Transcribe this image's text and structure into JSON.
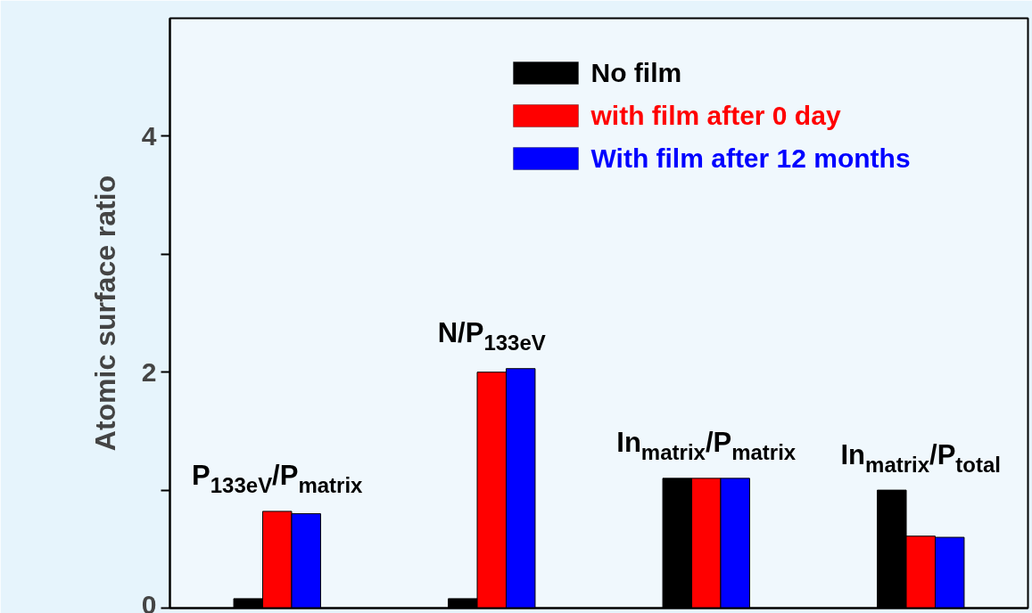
{
  "chart_data": {
    "type": "bar",
    "ylabel": "Atomic surface ratio",
    "categories": [
      "P$_{133eV}$/P$_{matrix}$",
      "N/P$_{133eV}$",
      "In$_{matrix}$/P$_{matrix}$",
      "In$_{matrix}$/P$_{total}$"
    ],
    "series": [
      {
        "name": "No film",
        "color": "#000000",
        "values": [
          0.08,
          0.08,
          1.1,
          1.0
        ]
      },
      {
        "name": "with film after 0 day",
        "color": "#ff0000",
        "values": [
          0.82,
          2.0,
          1.1,
          0.61
        ]
      },
      {
        "name": "With film after 12 months",
        "color": "#0000ff",
        "values": [
          0.8,
          2.03,
          1.1,
          0.6
        ]
      }
    ],
    "ylim": [
      0,
      5
    ],
    "yticks": [
      0,
      {
        "value": 1,
        "label": null
      },
      2,
      {
        "value": 3,
        "label": null
      },
      4
    ],
    "grid": false,
    "legend": "top right"
  }
}
